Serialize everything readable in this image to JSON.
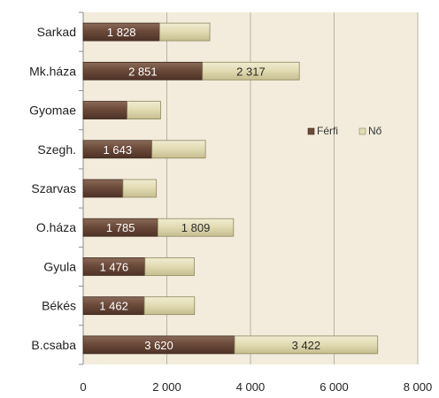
{
  "chart_data": {
    "type": "bar",
    "orientation": "horizontal",
    "stacked": true,
    "categories": [
      "Sarkad",
      "Mk.háza",
      "Gyomae",
      "Szegh.",
      "Szarvas",
      "O.háza",
      "Gyula",
      "Békés",
      "B.csaba"
    ],
    "series": [
      {
        "name": "Férfi",
        "color": "#6b4a3a",
        "values": [
          1828,
          2851,
          1050,
          1643,
          950,
          1785,
          1476,
          1462,
          3620
        ],
        "labels": [
          "1 828",
          "2 851",
          "",
          "1 643",
          "",
          "1 785",
          "1 476",
          "1 462",
          "3 620"
        ]
      },
      {
        "name": "Nő",
        "color": "#e3dcb4",
        "values": [
          1200,
          2317,
          800,
          1280,
          800,
          1809,
          1180,
          1200,
          3422
        ],
        "labels": [
          "",
          "2 317",
          "",
          "",
          "",
          "1 809",
          "",
          "",
          "3 422"
        ]
      }
    ],
    "xlim": [
      0,
      8000
    ],
    "xticks": [
      0,
      2000,
      4000,
      6000,
      8000
    ],
    "xtick_labels": [
      "0",
      "2 000",
      "4 000",
      "6 000",
      "8 000"
    ],
    "grid": true,
    "legend_position": "right-middle",
    "plot_background": "#f3ecdc"
  }
}
